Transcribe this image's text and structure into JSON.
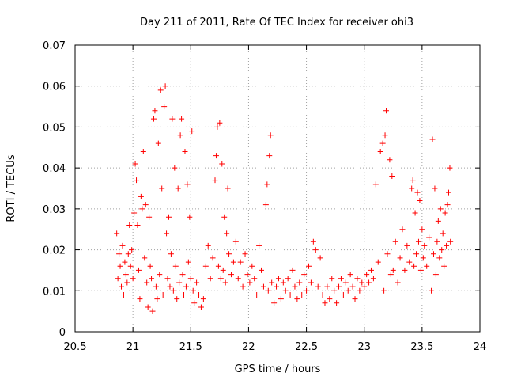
{
  "chart_data": {
    "type": "scatter",
    "title": "Day 211 of 2011, Rate Of TEC Index for receiver ohi3",
    "xlabel": "GPS time / hours",
    "ylabel": "ROTI / TECUs",
    "xlim": [
      20.5,
      24
    ],
    "ylim": [
      0,
      0.07
    ],
    "x_ticks": [
      "20.5",
      "21",
      "21.5",
      "22",
      "22.5",
      "23",
      "23.5",
      "24"
    ],
    "y_ticks": [
      "0",
      "0.01",
      "0.02",
      "0.03",
      "0.04",
      "0.05",
      "0.06",
      "0.07"
    ],
    "grid": true,
    "marker": "+",
    "color": "#ff0000",
    "series": [
      {
        "name": "ROTI",
        "points": [
          [
            20.86,
            0.024
          ],
          [
            20.87,
            0.013
          ],
          [
            20.88,
            0.019
          ],
          [
            20.89,
            0.016
          ],
          [
            20.9,
            0.011
          ],
          [
            20.91,
            0.021
          ],
          [
            20.92,
            0.009
          ],
          [
            20.93,
            0.017
          ],
          [
            20.94,
            0.014
          ],
          [
            20.95,
            0.012
          ],
          [
            20.96,
            0.019
          ],
          [
            20.97,
            0.026
          ],
          [
            20.98,
            0.016
          ],
          [
            20.99,
            0.02
          ],
          [
            21.0,
            0.013
          ],
          [
            21.01,
            0.029
          ],
          [
            21.02,
            0.041
          ],
          [
            21.03,
            0.037
          ],
          [
            21.04,
            0.026
          ],
          [
            21.05,
            0.015
          ],
          [
            21.06,
            0.008
          ],
          [
            21.07,
            0.033
          ],
          [
            21.08,
            0.03
          ],
          [
            21.09,
            0.044
          ],
          [
            21.1,
            0.018
          ],
          [
            21.11,
            0.031
          ],
          [
            21.12,
            0.012
          ],
          [
            21.13,
            0.006
          ],
          [
            21.14,
            0.028
          ],
          [
            21.15,
            0.016
          ],
          [
            21.16,
            0.013
          ],
          [
            21.17,
            0.005
          ],
          [
            21.18,
            0.052
          ],
          [
            21.19,
            0.054
          ],
          [
            21.2,
            0.011
          ],
          [
            21.21,
            0.008
          ],
          [
            21.22,
            0.046
          ],
          [
            21.23,
            0.014
          ],
          [
            21.24,
            0.059
          ],
          [
            21.25,
            0.035
          ],
          [
            21.26,
            0.009
          ],
          [
            21.27,
            0.055
          ],
          [
            21.28,
            0.06
          ],
          [
            21.29,
            0.024
          ],
          [
            21.3,
            0.013
          ],
          [
            21.31,
            0.028
          ],
          [
            21.32,
            0.011
          ],
          [
            21.33,
            0.019
          ],
          [
            21.34,
            0.052
          ],
          [
            21.35,
            0.01
          ],
          [
            21.36,
            0.04
          ],
          [
            21.37,
            0.016
          ],
          [
            21.38,
            0.008
          ],
          [
            21.39,
            0.035
          ],
          [
            21.4,
            0.012
          ],
          [
            21.41,
            0.048
          ],
          [
            21.42,
            0.052
          ],
          [
            21.43,
            0.014
          ],
          [
            21.44,
            0.009
          ],
          [
            21.45,
            0.044
          ],
          [
            21.46,
            0.011
          ],
          [
            21.47,
            0.036
          ],
          [
            21.48,
            0.017
          ],
          [
            21.49,
            0.028
          ],
          [
            21.5,
            0.013
          ],
          [
            21.51,
            0.049
          ],
          [
            21.52,
            0.01
          ],
          [
            21.53,
            0.007
          ],
          [
            21.55,
            0.012
          ],
          [
            21.57,
            0.009
          ],
          [
            21.59,
            0.006
          ],
          [
            21.61,
            0.008
          ],
          [
            21.63,
            0.016
          ],
          [
            21.65,
            0.021
          ],
          [
            21.67,
            0.013
          ],
          [
            21.69,
            0.018
          ],
          [
            21.71,
            0.037
          ],
          [
            21.72,
            0.043
          ],
          [
            21.73,
            0.05
          ],
          [
            21.74,
            0.016
          ],
          [
            21.75,
            0.051
          ],
          [
            21.76,
            0.013
          ],
          [
            21.77,
            0.041
          ],
          [
            21.78,
            0.015
          ],
          [
            21.79,
            0.028
          ],
          [
            21.8,
            0.012
          ],
          [
            21.81,
            0.024
          ],
          [
            21.82,
            0.035
          ],
          [
            21.83,
            0.019
          ],
          [
            21.85,
            0.014
          ],
          [
            21.87,
            0.017
          ],
          [
            21.89,
            0.022
          ],
          [
            21.91,
            0.013
          ],
          [
            21.93,
            0.017
          ],
          [
            21.95,
            0.011
          ],
          [
            21.97,
            0.019
          ],
          [
            21.99,
            0.014
          ],
          [
            22.01,
            0.012
          ],
          [
            22.03,
            0.016
          ],
          [
            22.05,
            0.013
          ],
          [
            22.07,
            0.009
          ],
          [
            22.09,
            0.021
          ],
          [
            22.11,
            0.015
          ],
          [
            22.13,
            0.011
          ],
          [
            22.15,
            0.031
          ],
          [
            22.16,
            0.036
          ],
          [
            22.17,
            0.01
          ],
          [
            22.18,
            0.043
          ],
          [
            22.19,
            0.048
          ],
          [
            22.2,
            0.012
          ],
          [
            22.22,
            0.007
          ],
          [
            22.24,
            0.011
          ],
          [
            22.26,
            0.013
          ],
          [
            22.28,
            0.008
          ],
          [
            22.3,
            0.012
          ],
          [
            22.32,
            0.01
          ],
          [
            22.34,
            0.013
          ],
          [
            22.36,
            0.009
          ],
          [
            22.38,
            0.015
          ],
          [
            22.4,
            0.011
          ],
          [
            22.42,
            0.008
          ],
          [
            22.44,
            0.012
          ],
          [
            22.46,
            0.009
          ],
          [
            22.48,
            0.014
          ],
          [
            22.5,
            0.01
          ],
          [
            22.52,
            0.016
          ],
          [
            22.54,
            0.012
          ],
          [
            22.56,
            0.022
          ],
          [
            22.58,
            0.02
          ],
          [
            22.6,
            0.011
          ],
          [
            22.62,
            0.018
          ],
          [
            22.64,
            0.009
          ],
          [
            22.66,
            0.007
          ],
          [
            22.68,
            0.011
          ],
          [
            22.7,
            0.008
          ],
          [
            22.72,
            0.013
          ],
          [
            22.74,
            0.01
          ],
          [
            22.76,
            0.007
          ],
          [
            22.78,
            0.011
          ],
          [
            22.8,
            0.013
          ],
          [
            22.82,
            0.009
          ],
          [
            22.84,
            0.012
          ],
          [
            22.86,
            0.01
          ],
          [
            22.88,
            0.014
          ],
          [
            22.9,
            0.011
          ],
          [
            22.92,
            0.008
          ],
          [
            22.94,
            0.013
          ],
          [
            22.96,
            0.01
          ],
          [
            22.98,
            0.012
          ],
          [
            23.0,
            0.011
          ],
          [
            23.02,
            0.014
          ],
          [
            23.04,
            0.012
          ],
          [
            23.06,
            0.015
          ],
          [
            23.08,
            0.013
          ],
          [
            23.1,
            0.036
          ],
          [
            23.12,
            0.017
          ],
          [
            23.14,
            0.044
          ],
          [
            23.16,
            0.046
          ],
          [
            23.17,
            0.01
          ],
          [
            23.18,
            0.048
          ],
          [
            23.19,
            0.054
          ],
          [
            23.2,
            0.019
          ],
          [
            23.22,
            0.042
          ],
          [
            23.23,
            0.014
          ],
          [
            23.24,
            0.038
          ],
          [
            23.25,
            0.015
          ],
          [
            23.27,
            0.022
          ],
          [
            23.29,
            0.012
          ],
          [
            23.31,
            0.018
          ],
          [
            23.33,
            0.025
          ],
          [
            23.35,
            0.015
          ],
          [
            23.37,
            0.021
          ],
          [
            23.39,
            0.017
          ],
          [
            23.41,
            0.035
          ],
          [
            23.42,
            0.037
          ],
          [
            23.43,
            0.016
          ],
          [
            23.44,
            0.029
          ],
          [
            23.45,
            0.019
          ],
          [
            23.46,
            0.034
          ],
          [
            23.47,
            0.022
          ],
          [
            23.48,
            0.032
          ],
          [
            23.49,
            0.015
          ],
          [
            23.5,
            0.025
          ],
          [
            23.51,
            0.018
          ],
          [
            23.52,
            0.021
          ],
          [
            23.54,
            0.016
          ],
          [
            23.56,
            0.023
          ],
          [
            23.58,
            0.01
          ],
          [
            23.59,
            0.047
          ],
          [
            23.6,
            0.019
          ],
          [
            23.61,
            0.035
          ],
          [
            23.62,
            0.014
          ],
          [
            23.63,
            0.022
          ],
          [
            23.64,
            0.027
          ],
          [
            23.65,
            0.018
          ],
          [
            23.66,
            0.03
          ],
          [
            23.67,
            0.02
          ],
          [
            23.68,
            0.024
          ],
          [
            23.69,
            0.016
          ],
          [
            23.7,
            0.029
          ],
          [
            23.71,
            0.021
          ],
          [
            23.72,
            0.031
          ],
          [
            23.73,
            0.034
          ],
          [
            23.74,
            0.04
          ],
          [
            23.745,
            0.022
          ]
        ]
      }
    ]
  }
}
